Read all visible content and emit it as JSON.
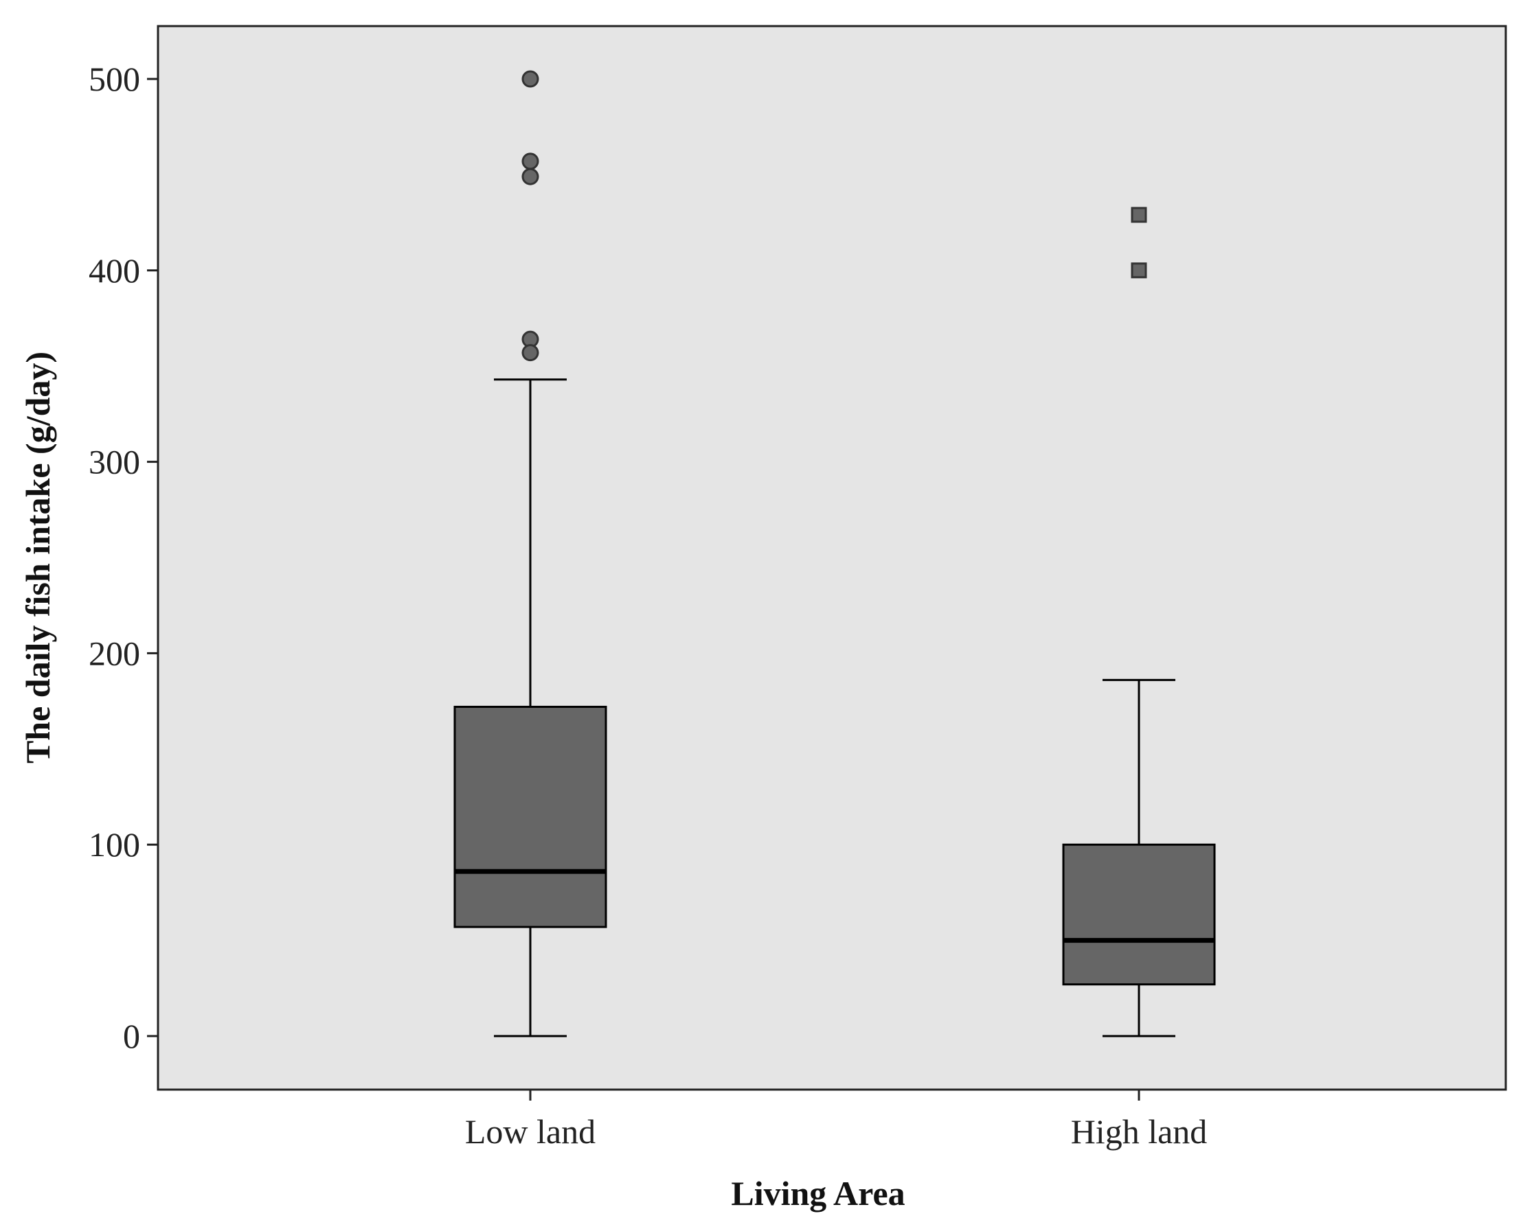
{
  "chart_data": {
    "type": "boxplot",
    "title": "",
    "xlabel": "Living Area",
    "ylabel": "The daily fish intake (g/day)",
    "ylim": [
      -28,
      528
    ],
    "yticks": [
      0,
      100,
      200,
      300,
      400,
      500
    ],
    "grid": false,
    "categories": [
      "Low land",
      "High land"
    ],
    "series": [
      {
        "name": "Low land",
        "whisker_low": 0,
        "q1": 57,
        "median": 86,
        "q3": 172,
        "whisker_high": 343,
        "outlier_marker": "circle",
        "outliers": [
          500,
          457,
          449,
          364,
          357
        ]
      },
      {
        "name": "High land",
        "whisker_low": 0,
        "q1": 27,
        "median": 50,
        "q3": 100,
        "whisker_high": 186,
        "outlier_marker": "square",
        "outliers": [
          429,
          400
        ]
      }
    ],
    "colors": {
      "plot_background": "#e5e5e5",
      "box_fill": "#666666",
      "line": "#000000",
      "outlier_fill": "#666666"
    }
  }
}
